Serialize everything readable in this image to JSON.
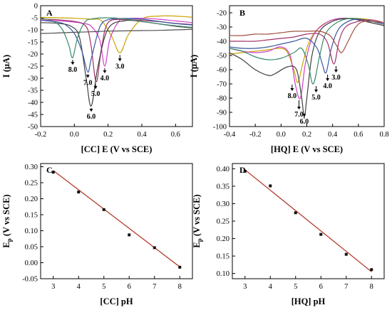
{
  "chart_data": [
    {
      "panel": "A",
      "type": "line",
      "xlabel": "[CC] E (V vs SCE)",
      "ylabel": "I (μA)",
      "xlim": [
        -0.2,
        0.7
      ],
      "ylim": [
        -50,
        0
      ],
      "xticks": [
        "-0.2",
        "0.0",
        "0.2",
        "0.4",
        "0.6"
      ],
      "yticks": [
        "0",
        "-5",
        "-10",
        "-15",
        "-20",
        "-25",
        "-30",
        "-35",
        "-40",
        "-45",
        "-50"
      ],
      "peak_labels": [
        "8.0",
        "7.0",
        "6.0",
        "5.0",
        "4.0",
        "3.0"
      ],
      "series": [
        {
          "color": "#c9a400",
          "x": [
            -0.2,
            -0.1,
            0.0,
            0.1,
            0.16,
            0.22,
            0.27,
            0.32,
            0.4,
            0.5,
            0.6,
            0.7
          ],
          "y": [
            -4.8,
            -5.0,
            -5.2,
            -5.6,
            -6.2,
            -12.5,
            -19.5,
            -12.0,
            -5.5,
            -4.3,
            -4.3,
            -4.8
          ]
        },
        {
          "color": "#d040c8",
          "x": [
            -0.2,
            -0.1,
            0.0,
            0.05,
            0.1,
            0.15,
            0.18,
            0.21,
            0.26,
            0.3,
            0.4,
            0.5,
            0.6,
            0.7
          ],
          "y": [
            -6.0,
            -6.2,
            -6.8,
            -7.3,
            -8.5,
            -14.0,
            -25.0,
            -14.0,
            -6.8,
            -5.4,
            -5.2,
            -5.6,
            -6.3,
            -7.0
          ]
        },
        {
          "color": "#a0306a",
          "x": [
            -0.2,
            -0.1,
            0.0,
            0.05,
            0.08,
            0.1,
            0.13,
            0.16,
            0.2,
            0.3,
            0.4,
            0.5,
            0.6,
            0.7
          ],
          "y": [
            -5.5,
            -5.8,
            -6.5,
            -7.5,
            -10.0,
            -17.0,
            -31.5,
            -18.0,
            -7.0,
            -5.8,
            -6.1,
            -6.6,
            -7.3,
            -7.8
          ]
        },
        {
          "color": "#404040",
          "x": [
            -0.2,
            -0.1,
            -0.02,
            0.03,
            0.07,
            0.1,
            0.14,
            0.2,
            0.3,
            0.4,
            0.5,
            0.6,
            0.7
          ],
          "y": [
            -7.0,
            -7.3,
            -8.5,
            -13.0,
            -30.0,
            -41.5,
            -25.0,
            -9.5,
            -6.2,
            -6.6,
            -7.5,
            -8.5,
            -9.2
          ]
        },
        {
          "color": "#3a5aa0",
          "x": [
            -0.2,
            -0.1,
            -0.05,
            0.0,
            0.03,
            0.05,
            0.08,
            0.1,
            0.15,
            0.2,
            0.3,
            0.4,
            0.5,
            0.6,
            0.7
          ],
          "y": [
            -6.0,
            -6.8,
            -8.0,
            -11.5,
            -16.0,
            -20.0,
            -27.5,
            -22.0,
            -9.0,
            -5.8,
            -5.3,
            -5.6,
            -6.5,
            -7.4,
            -8.0
          ]
        },
        {
          "color": "#3a8a6a",
          "x": [
            -0.2,
            -0.15,
            -0.1,
            -0.07,
            -0.05,
            -0.03,
            -0.01,
            0.02,
            0.06,
            0.1,
            0.2,
            0.3,
            0.4,
            0.5,
            0.6,
            0.7
          ],
          "y": [
            -5.2,
            -5.8,
            -7.5,
            -10.0,
            -13.0,
            -17.0,
            -21.5,
            -13.0,
            -7.0,
            -5.5,
            -5.0,
            -5.5,
            -6.5,
            -7.5,
            -8.3,
            -9.0
          ]
        },
        {
          "color": "#505050",
          "x": [
            -0.2,
            -0.1,
            0.0,
            0.1,
            0.2,
            0.3,
            0.4,
            0.5,
            0.6,
            0.7
          ],
          "y": [
            -11.5,
            -11.3,
            -11.0,
            -10.8,
            -10.5,
            -10.4,
            -10.3,
            -10.2,
            -10.0,
            -9.8
          ]
        }
      ]
    },
    {
      "panel": "B",
      "type": "line",
      "xlabel": "[HQ] E (V vs SCE)",
      "ylabel": "I (μA)",
      "xlim": [
        -0.4,
        0.8
      ],
      "ylim": [
        -100,
        -15
      ],
      "xticks": [
        "-0.4",
        "-0.2",
        "0.0",
        "0.2",
        "0.4",
        "0.6",
        "0.8"
      ],
      "yticks": [
        "-20",
        "-30",
        "-40",
        "-50",
        "-60",
        "-70",
        "-80",
        "-90",
        "-100"
      ],
      "peak_labels": [
        "8.0",
        "7.0",
        "6.0",
        "5.0",
        "4.0",
        "3.0"
      ],
      "series": [
        {
          "color": "#c9a400",
          "x": [
            -0.4,
            -0.3,
            -0.2,
            -0.1,
            0.0,
            0.05,
            0.1,
            0.13,
            0.17,
            0.22,
            0.3,
            0.4,
            0.5,
            0.6,
            0.7,
            0.8
          ],
          "y": [
            -49,
            -48,
            -47,
            -46,
            -45,
            -48,
            -60,
            -69,
            -55,
            -40,
            -30,
            -25,
            -24,
            -24,
            -25,
            -27
          ]
        },
        {
          "color": "#d040c8",
          "x": [
            -0.4,
            -0.3,
            -0.2,
            -0.1,
            0.0,
            0.07,
            0.11,
            0.15,
            0.19,
            0.25,
            0.35,
            0.45,
            0.55,
            0.65,
            0.8
          ],
          "y": [
            -45,
            -47,
            -48,
            -47,
            -44,
            -50,
            -70,
            -80,
            -55,
            -36,
            -27,
            -24,
            -24,
            -25,
            -28
          ]
        },
        {
          "color": "#404040",
          "x": [
            -0.4,
            -0.3,
            -0.2,
            -0.1,
            -0.05,
            0.05,
            0.12,
            0.16,
            0.18,
            0.2,
            0.24,
            0.3,
            0.4,
            0.5,
            0.6,
            0.7,
            0.8
          ],
          "y": [
            -48,
            -53,
            -60,
            -64,
            -63,
            -58,
            -60,
            -80,
            -93,
            -80,
            -50,
            -33,
            -26,
            -24,
            -25,
            -27,
            -29
          ]
        },
        {
          "color": "#3a8a6a",
          "x": [
            -0.4,
            -0.3,
            -0.2,
            -0.1,
            0.0,
            0.1,
            0.16,
            0.21,
            0.25,
            0.3,
            0.35,
            0.45,
            0.55,
            0.65,
            0.8
          ],
          "y": [
            -45,
            -47,
            -51,
            -53,
            -52,
            -48,
            -45,
            -56,
            -70,
            -50,
            -34,
            -26,
            -24,
            -25,
            -28
          ]
        },
        {
          "color": "#3a5aa0",
          "x": [
            -0.4,
            -0.3,
            -0.2,
            -0.1,
            0.0,
            0.1,
            0.2,
            0.28,
            0.32,
            0.35,
            0.39,
            0.45,
            0.55,
            0.65,
            0.8
          ],
          "y": [
            -44,
            -45,
            -45,
            -44,
            -42,
            -40,
            -38,
            -45,
            -56,
            -62,
            -45,
            -31,
            -25,
            -25,
            -28
          ]
        },
        {
          "color": "#a0306a",
          "x": [
            -0.4,
            -0.3,
            -0.2,
            -0.1,
            0.0,
            0.1,
            0.2,
            0.3,
            0.36,
            0.41,
            0.45,
            0.5,
            0.6,
            0.7,
            0.8
          ],
          "y": [
            -40,
            -40,
            -40,
            -39,
            -38,
            -37,
            -35,
            -35,
            -41,
            -56,
            -40,
            -30,
            -26,
            -25,
            -27
          ]
        },
        {
          "color": "#a05040",
          "x": [
            -0.4,
            -0.3,
            -0.2,
            -0.1,
            0.0,
            0.1,
            0.2,
            0.3,
            0.38,
            0.43,
            0.47,
            0.52,
            0.58,
            0.65,
            0.8
          ],
          "y": [
            -36,
            -36,
            -35,
            -35,
            -34,
            -33,
            -33,
            -33,
            -36,
            -43,
            -48,
            -40,
            -30,
            -26,
            -27
          ]
        }
      ]
    },
    {
      "panel": "C",
      "type": "scatter",
      "xlabel": "[CC] pH",
      "ylabel": "E",
      "ylabel_sub": "p",
      "ylabel_rest": " (V vs SCE)",
      "xlim": [
        2.5,
        8.5
      ],
      "ylim": [
        -0.05,
        0.31
      ],
      "xticks": [
        "3",
        "4",
        "5",
        "6",
        "7",
        "8"
      ],
      "yticks": [
        "-0.05",
        "0.00",
        "0.05",
        "0.10",
        "0.15",
        "0.20",
        "0.25",
        "0.30"
      ],
      "x": [
        3,
        4,
        5,
        6,
        7,
        8
      ],
      "y": [
        0.283,
        0.221,
        0.166,
        0.087,
        0.047,
        -0.014
      ],
      "fit": {
        "color": "#b03020",
        "x": [
          3,
          8
        ],
        "y": [
          0.288,
          -0.013
        ]
      }
    },
    {
      "panel": "D",
      "type": "scatter",
      "xlabel": "[HQ] pH",
      "ylabel": "E",
      "ylabel_sub": "p",
      "ylabel_rest": " (V vs SCE)",
      "xlim": [
        2.5,
        8.5
      ],
      "ylim": [
        0.085,
        0.415
      ],
      "xticks": [
        "3",
        "4",
        "5",
        "6",
        "7",
        "8"
      ],
      "yticks": [
        "0.10",
        "0.15",
        "0.20",
        "0.25",
        "0.30",
        "0.35",
        "0.40"
      ],
      "x": [
        3,
        4,
        5,
        6,
        7,
        8
      ],
      "y": [
        0.393,
        0.351,
        0.274,
        0.212,
        0.155,
        0.111
      ],
      "fit": {
        "color": "#b03020",
        "x": [
          3,
          8
        ],
        "y": [
          0.397,
          0.105
        ]
      }
    }
  ]
}
